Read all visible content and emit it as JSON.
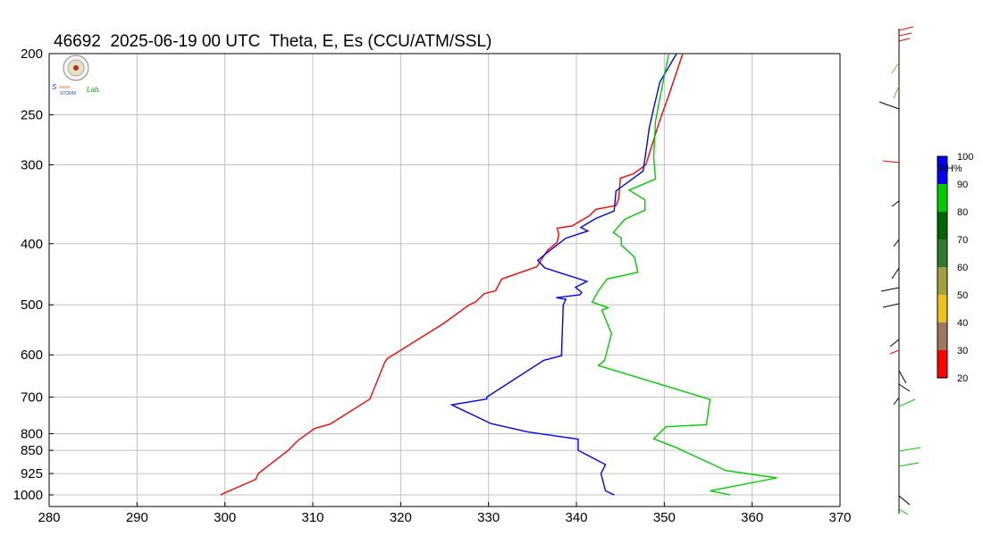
{
  "title": "46692  2025-06-19 00 UTC  Theta, E, Es (CCU/ATM/SSL)",
  "logo": {
    "text_severe": "Severe",
    "text_storm": "Storm",
    "text_lab": "Lab."
  },
  "chart_data": {
    "type": "line",
    "title": "46692  2025-06-19 00 UTC  Theta, E, Es (CCU/ATM/SSL)",
    "xlabel": "",
    "ylabel": "",
    "xlim": [
      280,
      370
    ],
    "x_ticks": [
      280,
      290,
      300,
      310,
      320,
      330,
      340,
      350,
      360,
      370
    ],
    "y_scale": "log",
    "ylim": [
      1020,
      200
    ],
    "y_ticks": [
      200,
      250,
      300,
      400,
      500,
      600,
      700,
      800,
      850,
      925,
      1000
    ],
    "grid": true,
    "series": [
      {
        "color": "#ff0000",
        "points": [
          [
            299.5,
            1000
          ],
          [
            299.8,
            995
          ],
          [
            303.5,
            945
          ],
          [
            303.8,
            925
          ],
          [
            307.2,
            850
          ],
          [
            308.3,
            820
          ],
          [
            310.2,
            785
          ],
          [
            312.0,
            772
          ],
          [
            316.5,
            705
          ],
          [
            318.2,
            616
          ],
          [
            318.5,
            608
          ],
          [
            324.9,
            535
          ],
          [
            327.8,
            500
          ],
          [
            328.5,
            495
          ],
          [
            329.5,
            480
          ],
          [
            330.8,
            475
          ],
          [
            331.5,
            455
          ],
          [
            335.5,
            435
          ],
          [
            336.7,
            410
          ],
          [
            337.8,
            398
          ],
          [
            338.0,
            387
          ],
          [
            337.8,
            378
          ],
          [
            339.5,
            375
          ],
          [
            341.5,
            361
          ],
          [
            342.2,
            353
          ],
          [
            344.5,
            348
          ],
          [
            344.8,
            340
          ],
          [
            345.0,
            315
          ],
          [
            346.5,
            310
          ],
          [
            347.9,
            300
          ],
          [
            348.5,
            282
          ],
          [
            349.5,
            255
          ],
          [
            350.5,
            233
          ],
          [
            352.1,
            200
          ]
        ]
      },
      {
        "color": "#0000ff",
        "points": [
          [
            344.3,
            1000
          ],
          [
            343.3,
            985
          ],
          [
            342.8,
            925
          ],
          [
            343.3,
            895
          ],
          [
            340.2,
            850
          ],
          [
            340.2,
            816
          ],
          [
            334.5,
            795
          ],
          [
            330.3,
            771
          ],
          [
            325.8,
            720
          ],
          [
            329.8,
            705
          ],
          [
            329.8,
            700
          ],
          [
            336.3,
            612
          ],
          [
            338.3,
            602
          ],
          [
            338.5,
            500
          ],
          [
            338.8,
            490
          ],
          [
            337.7,
            487
          ],
          [
            340.4,
            482
          ],
          [
            340.6,
            478
          ],
          [
            339.9,
            469
          ],
          [
            341.2,
            459
          ],
          [
            336.4,
            437
          ],
          [
            335.6,
            425
          ],
          [
            336.8,
            412
          ],
          [
            338.8,
            392
          ],
          [
            341.3,
            382
          ],
          [
            340.5,
            377
          ],
          [
            342.2,
            365
          ],
          [
            344.3,
            355
          ],
          [
            344.5,
            330
          ],
          [
            347.6,
            307
          ],
          [
            348.3,
            262
          ],
          [
            348.8,
            244
          ],
          [
            349.5,
            222
          ],
          [
            351.4,
            200
          ]
        ]
      },
      {
        "color": "#00cc00",
        "points": [
          [
            357.5,
            1000
          ],
          [
            355.2,
            985
          ],
          [
            362.8,
            940
          ],
          [
            357.0,
            915
          ],
          [
            351.4,
            842
          ],
          [
            348.8,
            815
          ],
          [
            350.2,
            780
          ],
          [
            354.8,
            774
          ],
          [
            355.2,
            706
          ],
          [
            342.5,
            624
          ],
          [
            343.2,
            612
          ],
          [
            344.0,
            555
          ],
          [
            342.9,
            510
          ],
          [
            343.6,
            505
          ],
          [
            341.8,
            495
          ],
          [
            342.5,
            475
          ],
          [
            343.5,
            455
          ],
          [
            347.0,
            444
          ],
          [
            346.6,
            420
          ],
          [
            345.1,
            402
          ],
          [
            345.1,
            392
          ],
          [
            344.2,
            384
          ],
          [
            345.5,
            366
          ],
          [
            347.8,
            354
          ],
          [
            347.8,
            341
          ],
          [
            346.0,
            329
          ],
          [
            349.0,
            316
          ],
          [
            348.8,
            292
          ],
          [
            349.0,
            256
          ],
          [
            349.3,
            243
          ],
          [
            350.5,
            200
          ]
        ]
      }
    ],
    "rh_colorbar": {
      "label": "RH%",
      "tick_labels": [
        "100",
        "90",
        "80",
        "70",
        "60",
        "50",
        "40",
        "30",
        "20"
      ],
      "colors": [
        "#0000ff",
        "#00cc00",
        "#006400",
        "#2e7d2e",
        "#a0a040",
        "#f0c020",
        "#a07860",
        "#ff0000",
        "#000000"
      ]
    }
  }
}
